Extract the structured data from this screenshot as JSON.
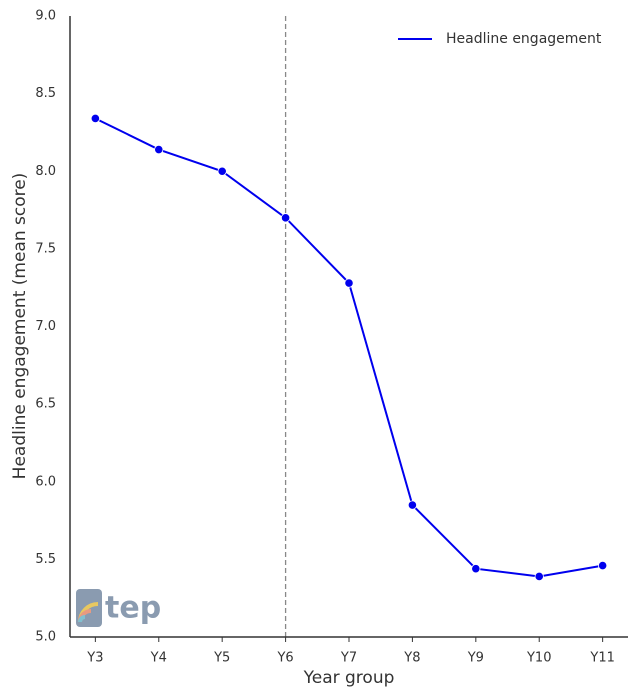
{
  "chart_data": {
    "type": "line",
    "x_label": "Year group",
    "y_label": "Headline engagement (mean score)",
    "categories": [
      "Y3",
      "Y4",
      "Y5",
      "Y6",
      "Y7",
      "Y8",
      "Y9",
      "Y10",
      "Y11"
    ],
    "series": [
      {
        "name": "Headline engagement",
        "color": "#0000ee",
        "values": [
          8.34,
          8.14,
          8.0,
          7.7,
          7.28,
          5.85,
          5.44,
          5.39,
          5.46
        ]
      }
    ],
    "ylim": [
      5.0,
      9.0
    ],
    "yticks": [
      {
        "value": 5,
        "label": "5.0"
      },
      5.5,
      {
        "value": 6,
        "label": "6.0"
      },
      6.5,
      {
        "value": 7,
        "label": "7.0"
      },
      7.5,
      {
        "value": 8,
        "label": "8.0"
      },
      8.5,
      {
        "value": 9,
        "label": "9.0"
      }
    ],
    "vline": "Y6",
    "legend": "upper right",
    "grid": false,
    "logo_text": "tep"
  }
}
